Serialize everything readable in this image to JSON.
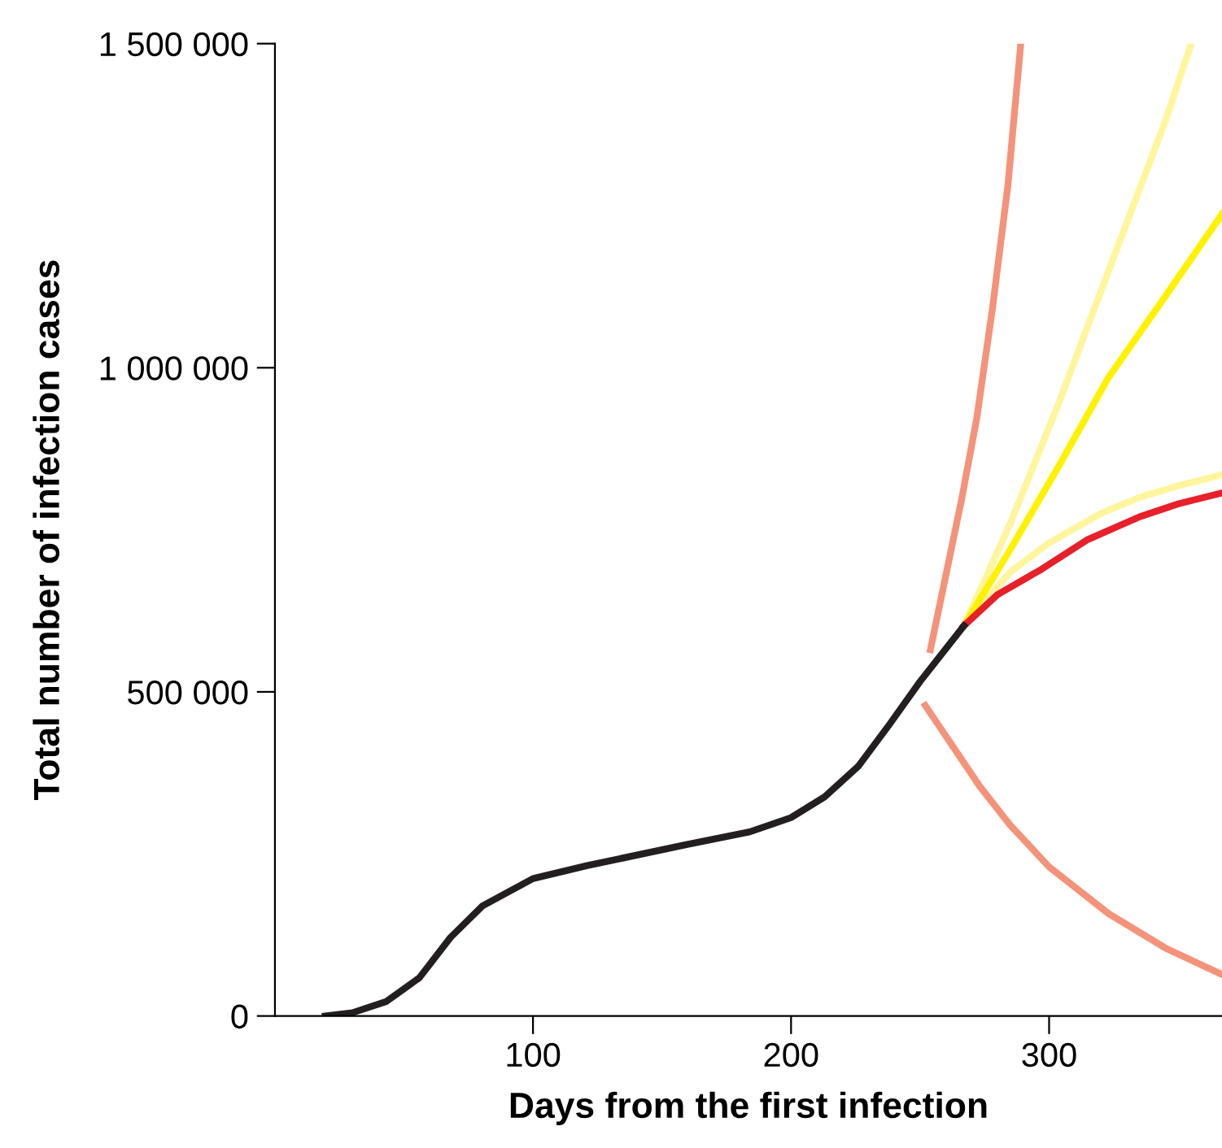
{
  "chart_data": {
    "type": "line",
    "xlabel": "Days from the first infection",
    "ylabel": "Total number of infection cases",
    "xlim": [
      0,
      367
    ],
    "ylim": [
      0,
      1500000
    ],
    "xticks": [
      100,
      200,
      300
    ],
    "yticks": [
      {
        "value": 0,
        "label": "0"
      },
      {
        "value": 500000,
        "label": "500 000"
      },
      {
        "value": 1000000,
        "label": "1 000 000"
      },
      {
        "value": 1500000,
        "label": "1 500 000"
      }
    ],
    "grid": false,
    "marker": "none",
    "line_style": "solid",
    "series": [
      {
        "color": "#f4937a",
        "x": [
          254,
          260,
          266,
          272,
          278,
          284,
          289
        ],
        "values": [
          565000,
          680000,
          795000,
          923000,
          1090000,
          1280000,
          1499000
        ]
      },
      {
        "color": "#f4937a",
        "x": [
          252,
          262,
          273,
          285,
          300,
          323,
          345,
          367
        ],
        "values": [
          479000,
          420000,
          355000,
          294000,
          230000,
          158000,
          105000,
          64000
        ]
      },
      {
        "color": "#fff59d",
        "x": [
          267,
          285,
          304,
          325,
          345,
          355
        ],
        "values": [
          602000,
          760000,
          948000,
          1170000,
          1380000,
          1499000
        ]
      },
      {
        "color": "#fff59d",
        "x": [
          267,
          285,
          300,
          320,
          335,
          350,
          367
        ],
        "values": [
          602000,
          685000,
          730000,
          775000,
          800000,
          818000,
          835000
        ]
      },
      {
        "color": "#fff200",
        "x": [
          267,
          285,
          304,
          323,
          345,
          367
        ],
        "values": [
          602000,
          720000,
          850000,
          985000,
          1110000,
          1237000
        ]
      },
      {
        "color": "#e8202a",
        "x": [
          267,
          280,
          297,
          315,
          335,
          350,
          367
        ],
        "values": [
          602000,
          650000,
          689000,
          735000,
          770000,
          790000,
          807000
        ]
      },
      {
        "color": "#231f20",
        "x": [
          19.5,
          30,
          43,
          56,
          68,
          80.5,
          100,
          121,
          159,
          184,
          200,
          213,
          226,
          238,
          250,
          267
        ],
        "values": [
          0,
          5000,
          22000,
          59000,
          121000,
          170000,
          212000,
          232000,
          264000,
          284000,
          306000,
          338000,
          385000,
          449000,
          516000,
          602000
        ]
      }
    ]
  }
}
